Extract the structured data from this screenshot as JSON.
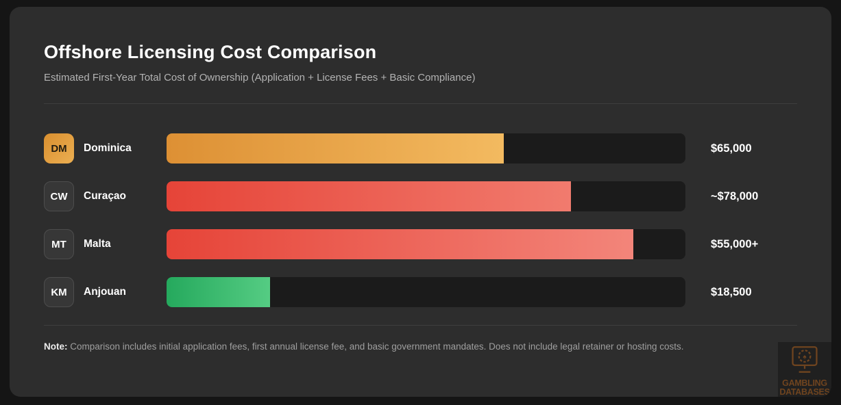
{
  "header": {
    "title": "Offshore Licensing Cost Comparison",
    "subtitle": "Estimated First-Year Total Cost of Ownership (Application + License Fees + Basic Compliance)"
  },
  "chart_data": {
    "type": "bar",
    "orientation": "horizontal",
    "title": "Offshore Licensing Cost Comparison",
    "subtitle": "Estimated First-Year Total Cost of Ownership (Application + License Fees + Basic Compliance)",
    "categories": [
      "Dominica",
      "Curaçao",
      "Malta",
      "Anjouan"
    ],
    "country_codes": [
      "DM",
      "CW",
      "MT",
      "KM"
    ],
    "values_usd": [
      65000,
      78000,
      55000,
      18500
    ],
    "value_labels": [
      "$65,000",
      "~$78,000",
      "$55,000+",
      "$18,500"
    ],
    "bar_fill_percent_of_track": [
      65,
      78,
      90,
      20
    ],
    "bar_color_themes": [
      "amber",
      "red",
      "red",
      "green"
    ],
    "xlim": [
      0,
      100000
    ],
    "grid": false,
    "legend": false
  },
  "rows": [
    {
      "code": "DM",
      "label": "Dominica",
      "value_label": "$65,000",
      "fill_percent": 65,
      "badge": "gold",
      "gradient": [
        "#dd9034",
        "#f3ba60"
      ]
    },
    {
      "code": "CW",
      "label": "Curaçao",
      "value_label": "~$78,000",
      "fill_percent": 78,
      "badge": "dark",
      "gradient": [
        "#e64438",
        "#f17b6e"
      ]
    },
    {
      "code": "MT",
      "label": "Malta",
      "value_label": "$55,000+",
      "fill_percent": 90,
      "badge": "dark",
      "gradient": [
        "#e64438",
        "#f3857a"
      ]
    },
    {
      "code": "KM",
      "label": "Anjouan",
      "value_label": "$18,500",
      "fill_percent": 20,
      "badge": "dark",
      "gradient": [
        "#25a95d",
        "#55cc83"
      ]
    }
  ],
  "note": {
    "label": "Note:",
    "text": "Comparison includes initial application fees, first annual license fee, and basic government mandates. Does not include legal retainer or hosting costs."
  },
  "watermark": {
    "line1": "GAMBLING",
    "line2": "DATABASES"
  },
  "colors": {
    "page_bg": "#151515",
    "card_bg": "#2d2d2d",
    "track_bg": "#1b1b1b",
    "accent_amber": "#e09a3e",
    "accent_red": "#e64438",
    "accent_green": "#25a95d",
    "watermark_brown": "#6f441f"
  }
}
